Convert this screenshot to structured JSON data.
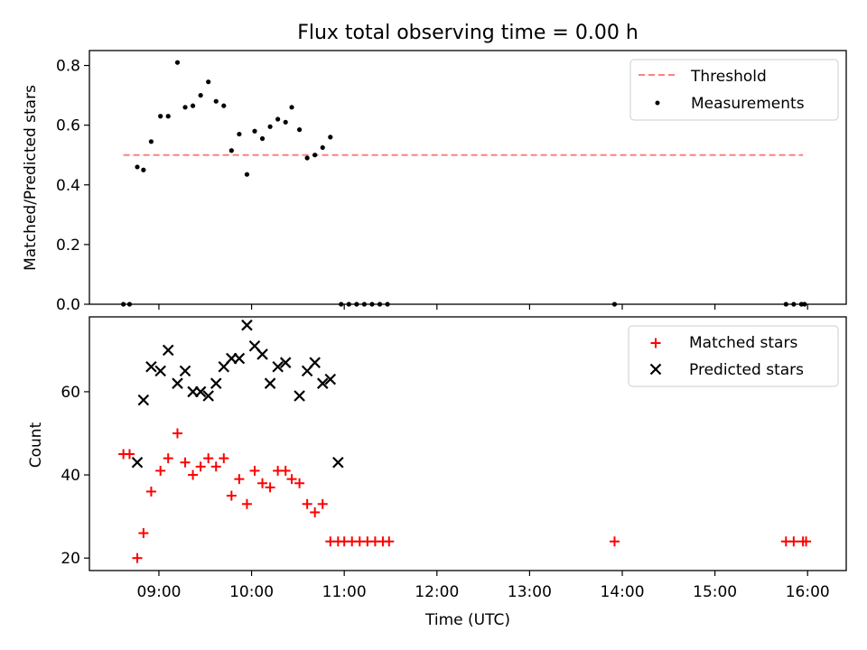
{
  "chart_data": [
    {
      "type": "scatter",
      "title": "Flux total observing time = 0.00 h",
      "ylabel": "Matched/Predicted stars",
      "xlim": [
        "08:15",
        "16:25"
      ],
      "ylim": [
        0,
        0.85
      ],
      "yticks": [
        0.0,
        0.2,
        0.4,
        0.6,
        0.8
      ],
      "ytick_labels": [
        "0.0",
        "0.2",
        "0.4",
        "0.6",
        "0.8"
      ],
      "legend_position": "top-right",
      "threshold": {
        "name": "Threshold",
        "value": 0.5,
        "x_start": "08:37",
        "x_end": "15:57",
        "color": "#ff8080",
        "style": "dashed"
      },
      "series": [
        {
          "name": "Measurements",
          "color": "#000000",
          "marker": "dot",
          "points": [
            [
              "08:37",
              0.0
            ],
            [
              "08:41",
              0.0
            ],
            [
              "08:46",
              0.46
            ],
            [
              "08:50",
              0.45
            ],
            [
              "08:55",
              0.545
            ],
            [
              "09:01",
              0.63
            ],
            [
              "09:06",
              0.63
            ],
            [
              "09:12",
              0.81
            ],
            [
              "09:17",
              0.66
            ],
            [
              "09:22",
              0.665
            ],
            [
              "09:27",
              0.7
            ],
            [
              "09:32",
              0.745
            ],
            [
              "09:37",
              0.68
            ],
            [
              "09:42",
              0.665
            ],
            [
              "09:47",
              0.515
            ],
            [
              "09:52",
              0.57
            ],
            [
              "09:57",
              0.435
            ],
            [
              "10:02",
              0.58
            ],
            [
              "10:07",
              0.555
            ],
            [
              "10:12",
              0.595
            ],
            [
              "10:17",
              0.62
            ],
            [
              "10:22",
              0.61
            ],
            [
              "10:26",
              0.66
            ],
            [
              "10:31",
              0.585
            ],
            [
              "10:36",
              0.49
            ],
            [
              "10:41",
              0.5
            ],
            [
              "10:46",
              0.525
            ],
            [
              "10:51",
              0.56
            ],
            [
              "10:58",
              0.0
            ],
            [
              "11:03",
              0.0
            ],
            [
              "11:08",
              0.0
            ],
            [
              "11:13",
              0.0
            ],
            [
              "11:18",
              0.0
            ],
            [
              "11:23",
              0.0
            ],
            [
              "11:28",
              0.0
            ],
            [
              "13:55",
              0.0
            ],
            [
              "15:46",
              0.0
            ],
            [
              "15:51",
              0.0
            ],
            [
              "15:56",
              0.0
            ],
            [
              "15:58",
              0.0
            ]
          ]
        }
      ]
    },
    {
      "type": "scatter",
      "xlabel": "Time (UTC)",
      "ylabel": "Count",
      "xlim": [
        "08:15",
        "16:25"
      ],
      "ylim": [
        17,
        78
      ],
      "xticks": [
        "09:00",
        "10:00",
        "11:00",
        "12:00",
        "13:00",
        "14:00",
        "15:00",
        "16:00"
      ],
      "yticks": [
        20,
        40,
        60
      ],
      "ytick_labels": [
        "20",
        "40",
        "60"
      ],
      "legend_position": "top-right",
      "series": [
        {
          "name": "Matched stars",
          "color": "#ff0000",
          "marker": "plus",
          "points": [
            [
              "08:37",
              45
            ],
            [
              "08:41",
              45
            ],
            [
              "08:46",
              20
            ],
            [
              "08:50",
              26
            ],
            [
              "08:55",
              36
            ],
            [
              "09:01",
              41
            ],
            [
              "09:06",
              44
            ],
            [
              "09:12",
              50
            ],
            [
              "09:17",
              43
            ],
            [
              "09:22",
              40
            ],
            [
              "09:27",
              42
            ],
            [
              "09:32",
              44
            ],
            [
              "09:37",
              42
            ],
            [
              "09:42",
              44
            ],
            [
              "09:47",
              35
            ],
            [
              "09:52",
              39
            ],
            [
              "09:57",
              33
            ],
            [
              "10:02",
              41
            ],
            [
              "10:07",
              38
            ],
            [
              "10:12",
              37
            ],
            [
              "10:17",
              41
            ],
            [
              "10:22",
              41
            ],
            [
              "10:26",
              39
            ],
            [
              "10:31",
              38
            ],
            [
              "10:36",
              33
            ],
            [
              "10:41",
              31
            ],
            [
              "10:46",
              33
            ],
            [
              "10:51",
              24
            ],
            [
              "10:56",
              24
            ],
            [
              "11:00",
              24
            ],
            [
              "11:05",
              24
            ],
            [
              "11:10",
              24
            ],
            [
              "11:15",
              24
            ],
            [
              "11:20",
              24
            ],
            [
              "11:25",
              24
            ],
            [
              "11:29",
              24
            ],
            [
              "13:55",
              24
            ],
            [
              "15:46",
              24
            ],
            [
              "15:51",
              24
            ],
            [
              "15:57",
              24
            ],
            [
              "15:59",
              24
            ]
          ]
        },
        {
          "name": "Predicted stars",
          "color": "#000000",
          "marker": "x",
          "points": [
            [
              "08:46",
              43
            ],
            [
              "08:50",
              58
            ],
            [
              "08:55",
              66
            ],
            [
              "09:01",
              65
            ],
            [
              "09:06",
              70
            ],
            [
              "09:12",
              62
            ],
            [
              "09:17",
              65
            ],
            [
              "09:22",
              60
            ],
            [
              "09:27",
              60
            ],
            [
              "09:32",
              59
            ],
            [
              "09:37",
              62
            ],
            [
              "09:42",
              66
            ],
            [
              "09:47",
              68
            ],
            [
              "09:52",
              68
            ],
            [
              "09:57",
              76
            ],
            [
              "10:02",
              71
            ],
            [
              "10:07",
              69
            ],
            [
              "10:12",
              62
            ],
            [
              "10:17",
              66
            ],
            [
              "10:22",
              67
            ],
            [
              "10:31",
              59
            ],
            [
              "10:36",
              65
            ],
            [
              "10:41",
              67
            ],
            [
              "10:46",
              62
            ],
            [
              "10:51",
              63
            ],
            [
              "10:56",
              43
            ]
          ]
        }
      ]
    }
  ]
}
